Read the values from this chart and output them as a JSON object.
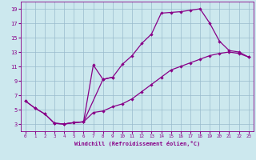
{
  "xlabel": "Windchill (Refroidissement éolien,°C)",
  "bg_color": "#cce8ee",
  "line_color": "#880088",
  "grid_color": "#99bbcc",
  "xlim": [
    -0.5,
    23.5
  ],
  "ylim": [
    2.0,
    20.0
  ],
  "xticks": [
    0,
    1,
    2,
    3,
    4,
    5,
    6,
    7,
    8,
    9,
    10,
    11,
    12,
    13,
    14,
    15,
    16,
    17,
    18,
    19,
    20,
    21,
    22,
    23
  ],
  "yticks": [
    3,
    5,
    7,
    9,
    11,
    13,
    15,
    17,
    19
  ],
  "curve1_x": [
    0,
    1,
    2,
    3,
    4,
    5,
    6,
    8,
    9,
    10,
    11,
    12,
    13,
    14,
    15,
    16,
    17,
    18,
    19,
    20,
    21,
    22,
    23
  ],
  "curve1_y": [
    6.2,
    5.2,
    4.4,
    3.1,
    3.0,
    3.2,
    3.3,
    9.2,
    9.5,
    11.3,
    12.5,
    14.2,
    15.5,
    18.4,
    18.5,
    18.6,
    18.8,
    19.0,
    17.0,
    14.5,
    13.2,
    13.0,
    12.3
  ],
  "curve2_x": [
    0,
    1,
    2,
    3,
    4,
    5,
    6,
    7,
    8,
    9,
    10,
    11,
    12,
    13,
    14,
    15,
    16,
    17,
    18,
    19,
    20,
    21,
    22,
    23
  ],
  "curve2_y": [
    6.2,
    5.2,
    4.4,
    3.1,
    3.0,
    3.2,
    3.3,
    4.6,
    4.8,
    5.4,
    5.8,
    6.5,
    7.5,
    8.5,
    9.5,
    10.5,
    11.0,
    11.5,
    12.0,
    12.5,
    12.8,
    13.0,
    12.8,
    12.3
  ],
  "curve3_x": [
    3,
    4,
    5,
    6,
    7,
    8,
    9
  ],
  "curve3_y": [
    3.1,
    3.0,
    3.2,
    3.3,
    11.2,
    9.2,
    9.5
  ]
}
